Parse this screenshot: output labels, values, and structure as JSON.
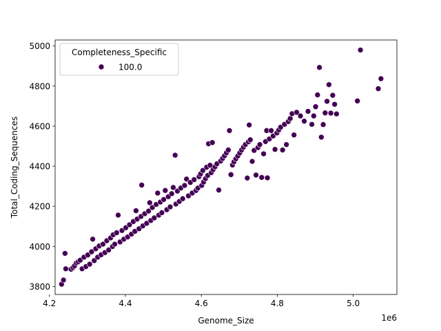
{
  "chart_data": {
    "type": "scatter",
    "title": "",
    "xlabel": "Genome_Size",
    "ylabel": "Total_Coding_Sequences",
    "x_offset_label": "1e6",
    "xlim": [
      4.215,
      5.115
    ],
    "ylim": [
      3760,
      5030
    ],
    "xticks": [
      4.2,
      4.4,
      4.6,
      4.8,
      5.0
    ],
    "xtick_labels": [
      "4.2",
      "4.4",
      "4.6",
      "4.8",
      "5.0"
    ],
    "yticks": [
      3800,
      4000,
      4200,
      4400,
      4600,
      4800,
      5000
    ],
    "ytick_labels": [
      "3800",
      "4000",
      "4200",
      "4400",
      "4600",
      "4800",
      "5000"
    ],
    "grid": false,
    "legend": {
      "title": "Completeness_Specific",
      "placement": "top-left",
      "entries": [
        {
          "label": "100.0",
          "color": "#440154"
        }
      ]
    },
    "series": [
      {
        "name": "100.0",
        "color": "#440154",
        "points": [
          [
            4.232,
            3811
          ],
          [
            4.237,
            3832
          ],
          [
            4.241,
            3965
          ],
          [
            4.243,
            3888
          ],
          [
            4.257,
            3886
          ],
          [
            4.262,
            3894
          ],
          [
            4.266,
            3903
          ],
          [
            4.271,
            3917
          ],
          [
            4.276,
            3923
          ],
          [
            4.281,
            3931
          ],
          [
            4.286,
            3888
          ],
          [
            4.291,
            3946
          ],
          [
            4.296,
            3899
          ],
          [
            4.301,
            3957
          ],
          [
            4.306,
            3911
          ],
          [
            4.311,
            3973
          ],
          [
            4.314,
            4036
          ],
          [
            4.318,
            3929
          ],
          [
            4.322,
            3988
          ],
          [
            4.327,
            3946
          ],
          [
            4.331,
            4002
          ],
          [
            4.336,
            3958
          ],
          [
            4.341,
            4011
          ],
          [
            4.346,
            3969
          ],
          [
            4.351,
            4028
          ],
          [
            4.356,
            3982
          ],
          [
            4.361,
            4042
          ],
          [
            4.366,
            3999
          ],
          [
            4.368,
            4058
          ],
          [
            4.372,
            4011
          ],
          [
            4.377,
            4068
          ],
          [
            4.381,
            4156
          ],
          [
            4.386,
            4022
          ],
          [
            4.391,
            4079
          ],
          [
            4.396,
            4036
          ],
          [
            4.401,
            4093
          ],
          [
            4.406,
            4047
          ],
          [
            4.411,
            4108
          ],
          [
            4.416,
            4061
          ],
          [
            4.421,
            4124
          ],
          [
            4.425,
            4075
          ],
          [
            4.428,
            4178
          ],
          [
            4.431,
            4136
          ],
          [
            4.436,
            4088
          ],
          [
            4.441,
            4149
          ],
          [
            4.443,
            4306
          ],
          [
            4.446,
            4102
          ],
          [
            4.451,
            4163
          ],
          [
            4.456,
            4115
          ],
          [
            4.461,
            4176
          ],
          [
            4.464,
            4218
          ],
          [
            4.467,
            4129
          ],
          [
            4.471,
            4194
          ],
          [
            4.476,
            4142
          ],
          [
            4.481,
            4209
          ],
          [
            4.485,
            4266
          ],
          [
            4.488,
            4156
          ],
          [
            4.492,
            4221
          ],
          [
            4.496,
            4168
          ],
          [
            4.501,
            4234
          ],
          [
            4.505,
            4279
          ],
          [
            4.509,
            4183
          ],
          [
            4.513,
            4248
          ],
          [
            4.518,
            4197
          ],
          [
            4.522,
            4263
          ],
          [
            4.526,
            4294
          ],
          [
            4.531,
            4455
          ],
          [
            4.533,
            4211
          ],
          [
            4.537,
            4276
          ],
          [
            4.542,
            4224
          ],
          [
            4.546,
            4291
          ],
          [
            4.551,
            4238
          ],
          [
            4.556,
            4304
          ],
          [
            4.561,
            4336
          ],
          [
            4.566,
            4252
          ],
          [
            4.571,
            4319
          ],
          [
            4.576,
            4266
          ],
          [
            4.581,
            4333
          ],
          [
            4.586,
            4279
          ],
          [
            4.591,
            4291
          ],
          [
            4.594,
            4348
          ],
          [
            4.598,
            4362
          ],
          [
            4.601,
            4304
          ],
          [
            4.604,
            4379
          ],
          [
            4.606,
            4321
          ],
          [
            4.611,
            4338
          ],
          [
            4.614,
            4395
          ],
          [
            4.617,
            4354
          ],
          [
            4.619,
            4512
          ],
          [
            4.623,
            4405
          ],
          [
            4.626,
            4368
          ],
          [
            4.629,
            4518
          ],
          [
            4.631,
            4383
          ],
          [
            4.636,
            4397
          ],
          [
            4.641,
            4412
          ],
          [
            4.646,
            4281
          ],
          [
            4.651,
            4426
          ],
          [
            4.656,
            4439
          ],
          [
            4.661,
            4452
          ],
          [
            4.666,
            4467
          ],
          [
            4.671,
            4481
          ],
          [
            4.674,
            4578
          ],
          [
            4.678,
            4358
          ],
          [
            4.682,
            4406
          ],
          [
            4.686,
            4422
          ],
          [
            4.691,
            4437
          ],
          [
            4.696,
            4451
          ],
          [
            4.701,
            4466
          ],
          [
            4.706,
            4481
          ],
          [
            4.711,
            4495
          ],
          [
            4.716,
            4508
          ],
          [
            4.721,
            4341
          ],
          [
            4.724,
            4522
          ],
          [
            4.726,
            4606
          ],
          [
            4.729,
            4532
          ],
          [
            4.734,
            4424
          ],
          [
            4.739,
            4479
          ],
          [
            4.744,
            4356
          ],
          [
            4.749,
            4493
          ],
          [
            4.754,
            4508
          ],
          [
            4.759,
            4344
          ],
          [
            4.764,
            4462
          ],
          [
            4.769,
            4523
          ],
          [
            4.772,
            4578
          ],
          [
            4.774,
            4342
          ],
          [
            4.779,
            4536
          ],
          [
            4.784,
            4578
          ],
          [
            4.789,
            4551
          ],
          [
            4.794,
            4484
          ],
          [
            4.799,
            4566
          ],
          [
            4.804,
            4581
          ],
          [
            4.809,
            4595
          ],
          [
            4.814,
            4481
          ],
          [
            4.819,
            4609
          ],
          [
            4.824,
            4508
          ],
          [
            4.829,
            4623
          ],
          [
            4.834,
            4638
          ],
          [
            4.839,
            4662
          ],
          [
            4.844,
            4556
          ],
          [
            4.851,
            4669
          ],
          [
            4.861,
            4651
          ],
          [
            4.871,
            4625
          ],
          [
            4.881,
            4674
          ],
          [
            4.891,
            4609
          ],
          [
            4.896,
            4651
          ],
          [
            4.901,
            4697
          ],
          [
            4.906,
            4756
          ],
          [
            4.911,
            4893
          ],
          [
            4.916,
            4545
          ],
          [
            4.921,
            4608
          ],
          [
            4.926,
            4666
          ],
          [
            4.931,
            4724
          ],
          [
            4.936,
            4807
          ],
          [
            4.941,
            4665
          ],
          [
            4.946,
            4754
          ],
          [
            4.951,
            4709
          ],
          [
            4.956,
            4661
          ],
          [
            5.011,
            4726
          ],
          [
            5.019,
            4980
          ],
          [
            5.066,
            4787
          ],
          [
            5.073,
            4837
          ]
        ]
      }
    ]
  }
}
